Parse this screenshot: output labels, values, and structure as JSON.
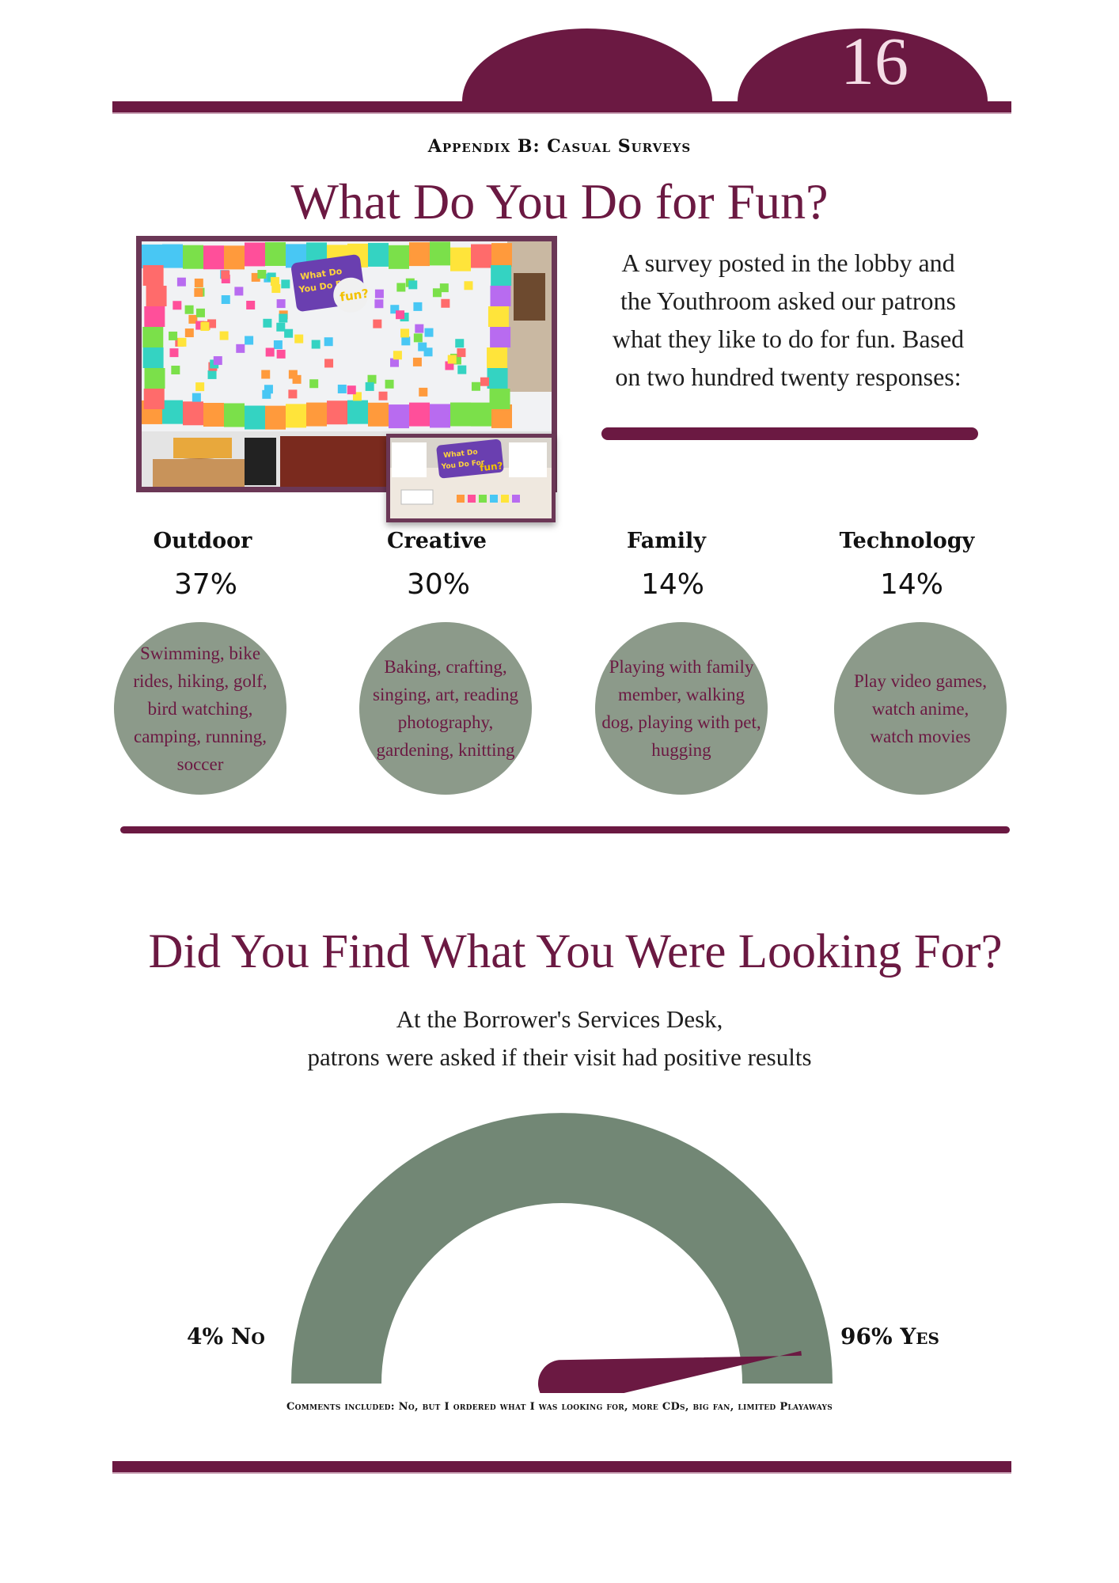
{
  "page_number": "16",
  "appendix_title": "Appendix B: Casual Surveys",
  "fun_section": {
    "title": "What Do You Do for Fun?",
    "intro_lines": [
      "A survey posted in the lobby and",
      "the Youthroom asked our patrons",
      "what they like to do for fun. Based",
      "on two hundred twenty responses:"
    ],
    "photo": {
      "sign_line_1": "What Do",
      "sign_line_2": "You Do For",
      "sign_line_3": "fun?"
    },
    "categories": [
      {
        "name": "Outdoor",
        "percent": "37%",
        "examples": "Swimming, bike rides, hiking, golf, bird watching, camping, running, soccer"
      },
      {
        "name": "Creative",
        "percent": "30%",
        "examples": "Baking, crafting, singing, art, reading photography, gardening, knitting"
      },
      {
        "name": "Family",
        "percent": "14%",
        "examples": "Playing with family member, walking dog, playing with pet, hugging"
      },
      {
        "name": "Technology",
        "percent": "14%",
        "examples": "Play video games, watch anime, watch movies"
      }
    ]
  },
  "found_section": {
    "title": "Did You Find What You Were Looking For?",
    "subtitle_lines": [
      "At the Borrower's Services Desk,",
      "patrons were asked if their visit had positive results"
    ],
    "gauge": {
      "no_label": "4% No",
      "yes_label": "96% Yes",
      "yes_fraction": 0.96
    },
    "comments": "Comments included: No, but I ordered what I was looking for, more CDs, big fan, limited Playaways"
  },
  "colors": {
    "plum": "#6b1942",
    "sage": "#8c9a8a",
    "gauge_sage": "#728775"
  }
}
